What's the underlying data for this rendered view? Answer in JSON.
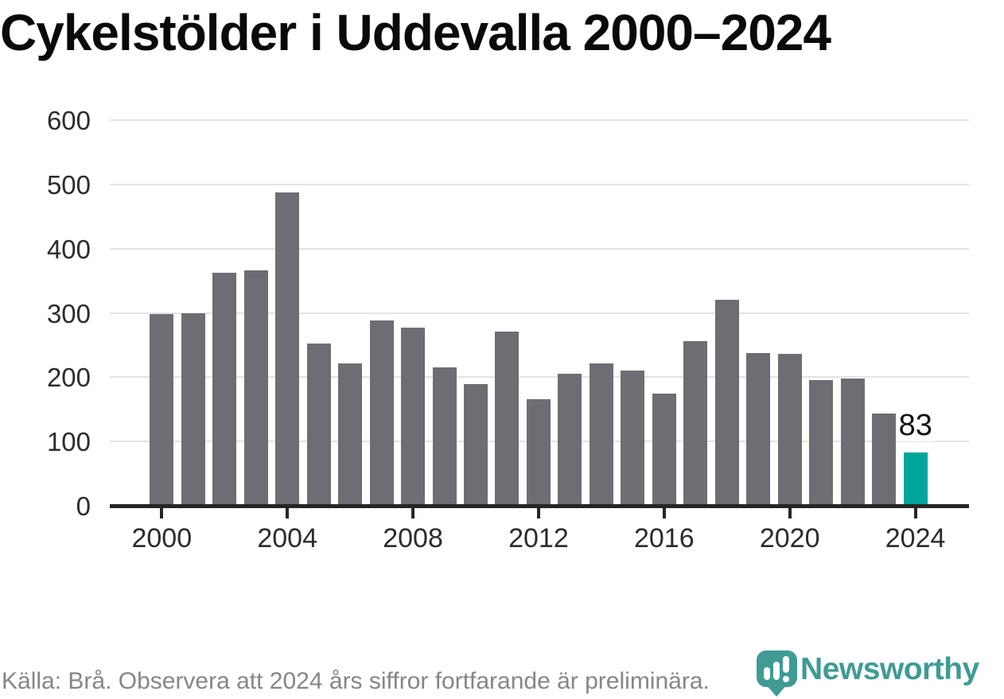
{
  "title": "Cykelstölder i Uddevalla 2000–2024",
  "chart_data": {
    "type": "bar",
    "title": "Cykelstölder i Uddevalla 2000–2024",
    "x": [
      2000,
      2001,
      2002,
      2003,
      2004,
      2005,
      2006,
      2007,
      2008,
      2009,
      2010,
      2011,
      2012,
      2013,
      2014,
      2015,
      2016,
      2017,
      2018,
      2019,
      2020,
      2021,
      2022,
      2023,
      2024
    ],
    "values": [
      298,
      300,
      363,
      367,
      488,
      252,
      221,
      289,
      277,
      215,
      189,
      271,
      166,
      205,
      221,
      211,
      174,
      256,
      320,
      238,
      237,
      195,
      198,
      144,
      83
    ],
    "xlabel": "",
    "ylabel": "",
    "ylim": [
      0,
      600
    ],
    "yticks": [
      0,
      100,
      200,
      300,
      400,
      500,
      600
    ],
    "xticks": [
      2000,
      2004,
      2008,
      2012,
      2016,
      2020,
      2024
    ],
    "grid": "horizontal",
    "legend": "none",
    "highlight_x": 2024,
    "annotation": {
      "x": 2024,
      "label": "83"
    },
    "colors": {
      "bar": "#6f6c73",
      "highlight": "#00a59b",
      "grid": "#e3e3e3",
      "axis": "#262626"
    }
  },
  "footer": {
    "source_note": "Källa: Brå. Observera att 2024 års siffror fortfarande är preliminära."
  },
  "logo": {
    "text": "Newsworthy",
    "color": "#3f9b94"
  }
}
